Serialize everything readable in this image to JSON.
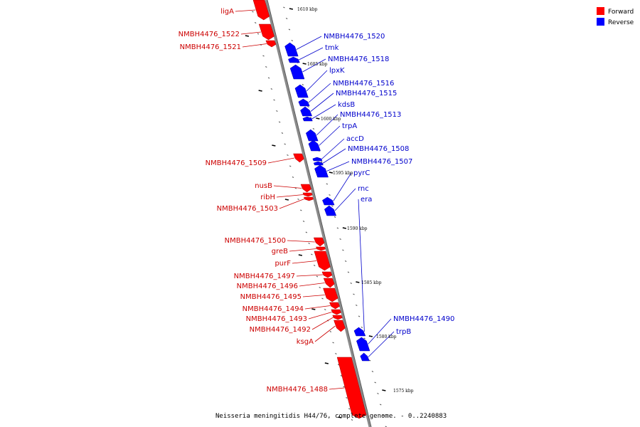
{
  "colors": {
    "forward": "#ff0000",
    "reverse": "#0000ff",
    "axis": "#8a8a8a",
    "label_forward": "#cc0000",
    "label_reverse": "#0000cc"
  },
  "legend": {
    "forward": "Forward",
    "reverse": "Reverse"
  },
  "caption": "Neisseria meningitidis H44/76, complete genome. - 0..2240883",
  "axis": {
    "unit": "kbp",
    "ticks": [
      "1610 kbp",
      "1605 kbp",
      "1600 kbp",
      "1595 kbp",
      "1590 kbp",
      "1585 kbp",
      "1580 kbp",
      "1575 kbp"
    ]
  },
  "features_forward": [
    "ligA",
    "NMBH4476_1522",
    "NMBH4476_1521",
    "NMBH4476_1509",
    "nusB",
    "ribH",
    "NMBH4476_1503",
    "NMBH4476_1500",
    "greB",
    "purF",
    "NMBH4476_1497",
    "NMBH4476_1496",
    "NMBH4476_1495",
    "NMBH4476_1494",
    "NMBH4476_1493",
    "NMBH4476_1492",
    "ksgA",
    "NMBH4476_1488"
  ],
  "features_reverse": [
    "NMBH4476_1520",
    "tmk",
    "NMBH4476_1518",
    "lpxK",
    "NMBH4476_1516",
    "NMBH4476_1515",
    "kdsB",
    "NMBH4476_1513",
    "trpA",
    "accD",
    "NMBH4476_1508",
    "NMBH4476_1507",
    "pyrC",
    "rnc",
    "era",
    "NMBH4476_1490",
    "trpB"
  ]
}
